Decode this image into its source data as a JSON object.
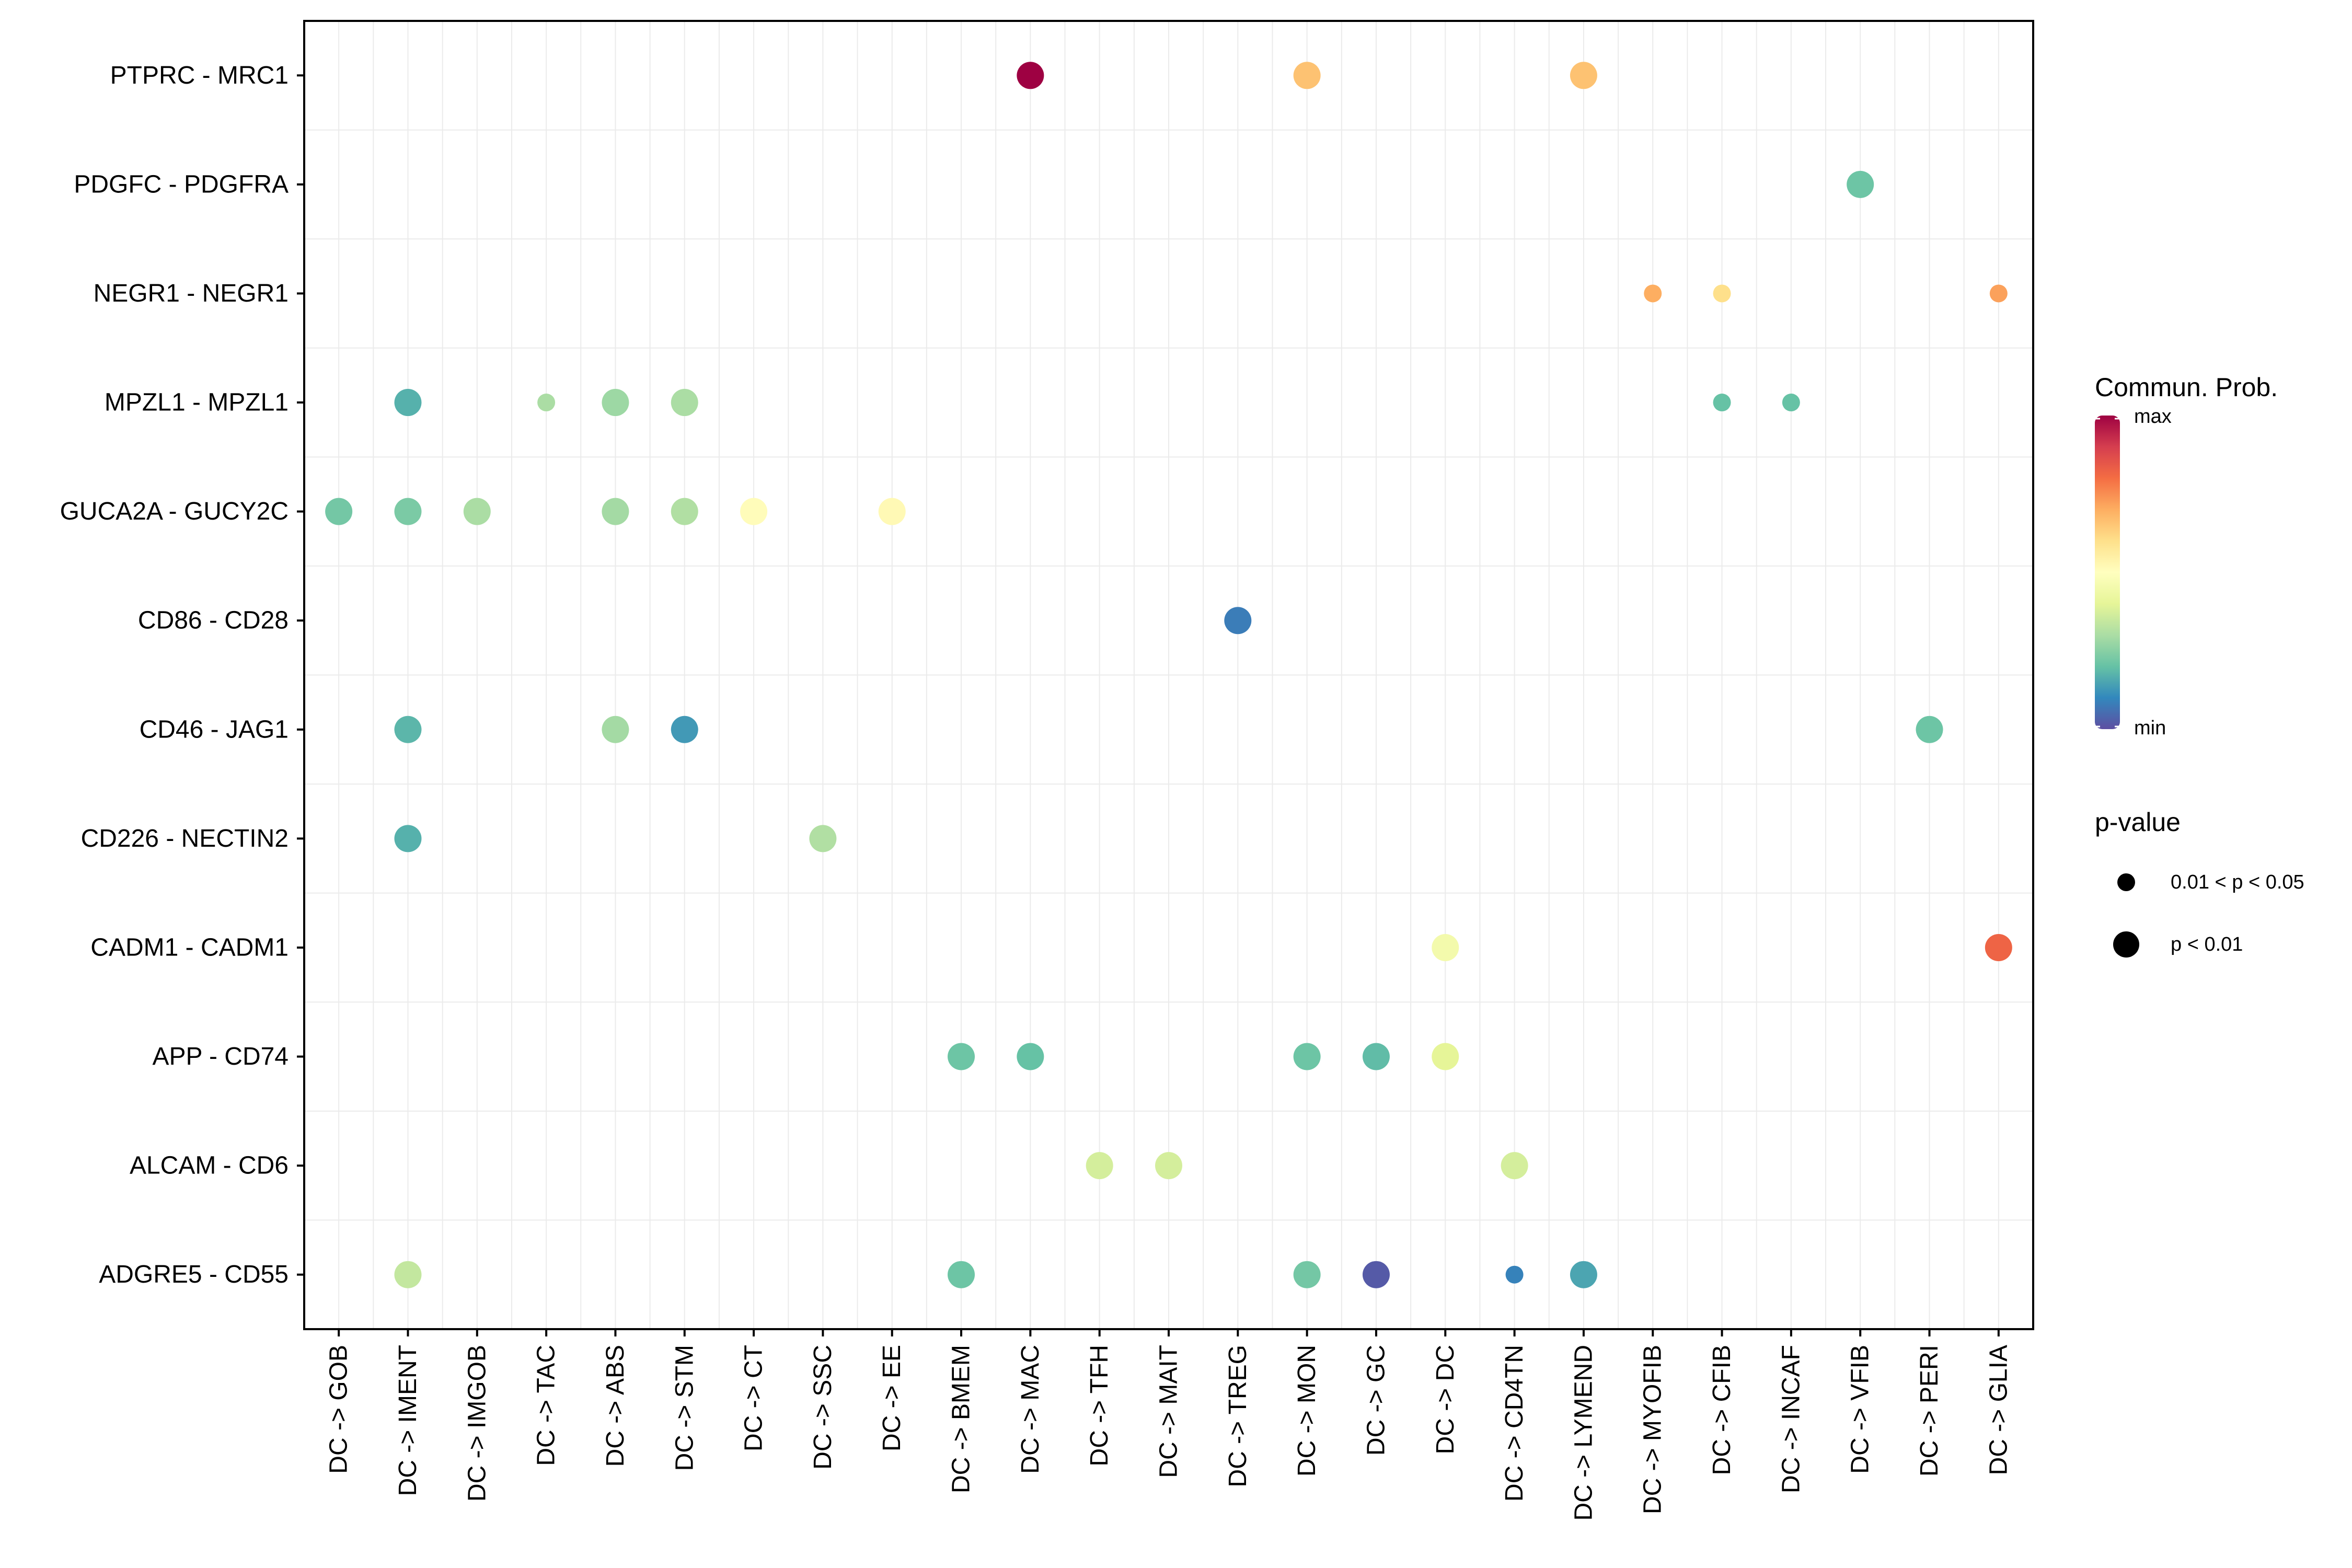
{
  "chart_data": {
    "type": "scatter",
    "title": "",
    "xlabel": "",
    "ylabel": "",
    "x_categories": [
      "DC -> GOB",
      "DC -> IMENT",
      "DC -> IMGOB",
      "DC -> TAC",
      "DC -> ABS",
      "DC -> STM",
      "DC -> CT",
      "DC -> SSC",
      "DC -> EE",
      "DC -> BMEM",
      "DC -> MAC",
      "DC -> TFH",
      "DC -> MAIT",
      "DC -> TREG",
      "DC -> MON",
      "DC -> GC",
      "DC -> DC",
      "DC -> CD4TN",
      "DC -> LYMEND",
      "DC -> MYOFIB",
      "DC -> CFIB",
      "DC -> INCAF",
      "DC -> VFIB",
      "DC -> PERI",
      "DC -> GLIA"
    ],
    "y_categories": [
      "PTPRC - MRC1",
      "PDGFC - PDGFRA",
      "NEGR1 - NEGR1",
      "MPZL1 - MPZL1",
      "GUCA2A - GUCY2C",
      "CD86 - CD28",
      "CD46 - JAG1",
      "CD226 - NECTIN2",
      "CADM1 - CADM1",
      "APP - CD74",
      "ALCAM - CD6",
      "ADGRE5 - CD55"
    ],
    "points": [
      {
        "x": "DC -> MAC",
        "y": "PTPRC - MRC1",
        "prob": 1.0,
        "pval": "p < 0.01"
      },
      {
        "x": "DC -> MON",
        "y": "PTPRC - MRC1",
        "prob": 0.66,
        "pval": "p < 0.01"
      },
      {
        "x": "DC -> LYMEND",
        "y": "PTPRC - MRC1",
        "prob": 0.66,
        "pval": "p < 0.01"
      },
      {
        "x": "DC -> VFIB",
        "y": "PDGFC - PDGFRA",
        "prob": 0.21,
        "pval": "p < 0.01"
      },
      {
        "x": "DC -> MYOFIB",
        "y": "NEGR1 - NEGR1",
        "prob": 0.7,
        "pval": "0.01 < p < 0.05"
      },
      {
        "x": "DC -> CFIB",
        "y": "NEGR1 - NEGR1",
        "prob": 0.6,
        "pval": "0.01 < p < 0.05"
      },
      {
        "x": "DC -> GLIA",
        "y": "NEGR1 - NEGR1",
        "prob": 0.72,
        "pval": "0.01 < p < 0.05"
      },
      {
        "x": "DC -> IMENT",
        "y": "MPZL1 - MPZL1",
        "prob": 0.17,
        "pval": "p < 0.01"
      },
      {
        "x": "DC -> TAC",
        "y": "MPZL1 - MPZL1",
        "prob": 0.3,
        "pval": "0.01 < p < 0.05"
      },
      {
        "x": "DC -> ABS",
        "y": "MPZL1 - MPZL1",
        "prob": 0.28,
        "pval": "p < 0.01"
      },
      {
        "x": "DC -> STM",
        "y": "MPZL1 - MPZL1",
        "prob": 0.3,
        "pval": "p < 0.01"
      },
      {
        "x": "DC -> CFIB",
        "y": "MPZL1 - MPZL1",
        "prob": 0.2,
        "pval": "0.01 < p < 0.05"
      },
      {
        "x": "DC -> INCAF",
        "y": "MPZL1 - MPZL1",
        "prob": 0.2,
        "pval": "0.01 < p < 0.05"
      },
      {
        "x": "DC -> GOB",
        "y": "GUCA2A - GUCY2C",
        "prob": 0.22,
        "pval": "p < 0.01"
      },
      {
        "x": "DC -> IMENT",
        "y": "GUCA2A - GUCY2C",
        "prob": 0.23,
        "pval": "p < 0.01"
      },
      {
        "x": "DC -> IMGOB",
        "y": "GUCA2A - GUCY2C",
        "prob": 0.3,
        "pval": "p < 0.01"
      },
      {
        "x": "DC -> ABS",
        "y": "GUCA2A - GUCY2C",
        "prob": 0.29,
        "pval": "p < 0.01"
      },
      {
        "x": "DC -> STM",
        "y": "GUCA2A - GUCY2C",
        "prob": 0.31,
        "pval": "p < 0.01"
      },
      {
        "x": "DC -> CT",
        "y": "GUCA2A - GUCY2C",
        "prob": 0.51,
        "pval": "p < 0.01"
      },
      {
        "x": "DC -> EE",
        "y": "GUCA2A - GUCY2C",
        "prob": 0.52,
        "pval": "p < 0.01"
      },
      {
        "x": "DC -> TREG",
        "y": "CD86 - CD28",
        "prob": 0.08,
        "pval": "p < 0.01"
      },
      {
        "x": "DC -> IMENT",
        "y": "CD46 - JAG1",
        "prob": 0.18,
        "pval": "p < 0.01"
      },
      {
        "x": "DC -> ABS",
        "y": "CD46 - JAG1",
        "prob": 0.29,
        "pval": "p < 0.01"
      },
      {
        "x": "DC -> STM",
        "y": "CD46 - JAG1",
        "prob": 0.13,
        "pval": "p < 0.01"
      },
      {
        "x": "DC -> PERI",
        "y": "CD46 - JAG1",
        "prob": 0.21,
        "pval": "p < 0.01"
      },
      {
        "x": "DC -> IMENT",
        "y": "CD226 - NECTIN2",
        "prob": 0.17,
        "pval": "p < 0.01"
      },
      {
        "x": "DC -> SSC",
        "y": "CD226 - NECTIN2",
        "prob": 0.31,
        "pval": "p < 0.01"
      },
      {
        "x": "DC -> DC",
        "y": "CADM1 - CADM1",
        "prob": 0.45,
        "pval": "p < 0.01"
      },
      {
        "x": "DC -> GLIA",
        "y": "CADM1 - CADM1",
        "prob": 0.82,
        "pval": "p < 0.01"
      },
      {
        "x": "DC -> BMEM",
        "y": "APP - CD74",
        "prob": 0.21,
        "pval": "p < 0.01"
      },
      {
        "x": "DC -> MAC",
        "y": "APP - CD74",
        "prob": 0.2,
        "pval": "p < 0.01"
      },
      {
        "x": "DC -> MON",
        "y": "APP - CD74",
        "prob": 0.21,
        "pval": "p < 0.01"
      },
      {
        "x": "DC -> GC",
        "y": "APP - CD74",
        "prob": 0.19,
        "pval": "p < 0.01"
      },
      {
        "x": "DC -> DC",
        "y": "APP - CD74",
        "prob": 0.4,
        "pval": "p < 0.01"
      },
      {
        "x": "DC -> TFH",
        "y": "ALCAM - CD6",
        "prob": 0.37,
        "pval": "p < 0.01"
      },
      {
        "x": "DC -> MAIT",
        "y": "ALCAM - CD6",
        "prob": 0.37,
        "pval": "p < 0.01"
      },
      {
        "x": "DC -> CD4TN",
        "y": "ALCAM - CD6",
        "prob": 0.37,
        "pval": "p < 0.01"
      },
      {
        "x": "DC -> IMENT",
        "y": "ADGRE5 - CD55",
        "prob": 0.34,
        "pval": "p < 0.01"
      },
      {
        "x": "DC -> BMEM",
        "y": "ADGRE5 - CD55",
        "prob": 0.21,
        "pval": "p < 0.01"
      },
      {
        "x": "DC -> MON",
        "y": "ADGRE5 - CD55",
        "prob": 0.22,
        "pval": "p < 0.01"
      },
      {
        "x": "DC -> GC",
        "y": "ADGRE5 - CD55",
        "prob": 0.02,
        "pval": "p < 0.01"
      },
      {
        "x": "DC -> CD4TN",
        "y": "ADGRE5 - CD55",
        "prob": 0.09,
        "pval": "0.01 < p < 0.05"
      },
      {
        "x": "DC -> LYMEND",
        "y": "ADGRE5 - CD55",
        "prob": 0.15,
        "pval": "p < 0.01"
      }
    ],
    "color_scale": {
      "title": "Commun. Prob.",
      "max_label": "max",
      "min_label": "min",
      "palette": [
        "#5E4FA2",
        "#3288BD",
        "#66C2A5",
        "#ABDDA4",
        "#E6F598",
        "#FFFFBF",
        "#FEE08B",
        "#FDAE61",
        "#F46D43",
        "#D53E4F",
        "#9E0142"
      ]
    },
    "size_legend": {
      "title": "p-value",
      "entries": [
        {
          "label": "0.01 < p < 0.05",
          "level": "small"
        },
        {
          "label": "p < 0.01",
          "level": "large"
        }
      ]
    },
    "grid": true,
    "legend_position": "right"
  }
}
